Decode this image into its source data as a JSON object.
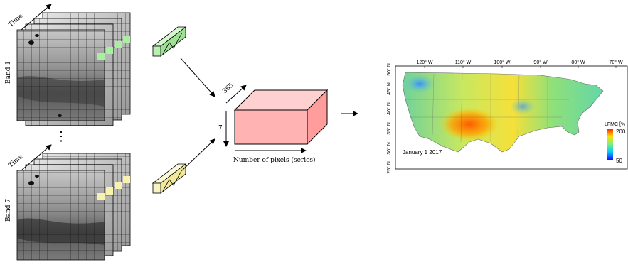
{
  "diagram": {
    "time_label_top": "Time",
    "time_label_bottom": "Time",
    "band_top_label": "Band 1",
    "band_bottom_label": "Band 7",
    "ellipsis": "⋮",
    "cube_depth_label": "365",
    "cube_height_label": "7",
    "cube_width_label": "Number of pixels (series)"
  },
  "map": {
    "date_label": "January 1 2017",
    "legend_title": "LFMC [%",
    "legend_max": "200",
    "legend_min": "50",
    "longitude_ticks": [
      "120° W",
      "110° W",
      "100° W",
      "90° W",
      "80° W",
      "70° W"
    ],
    "latitude_ticks": [
      "50° N",
      "45° N",
      "40° N",
      "35° N",
      "30° N",
      "25° N"
    ]
  },
  "colors": {
    "pixel_highlight_top": "#a8f0a0",
    "pixel_highlight_bottom": "#f8f2b0",
    "vector_top_fill": "#b8f0b0",
    "vector_bottom_fill": "#f8f4c0",
    "cube_fill": "#ffb3b3"
  }
}
